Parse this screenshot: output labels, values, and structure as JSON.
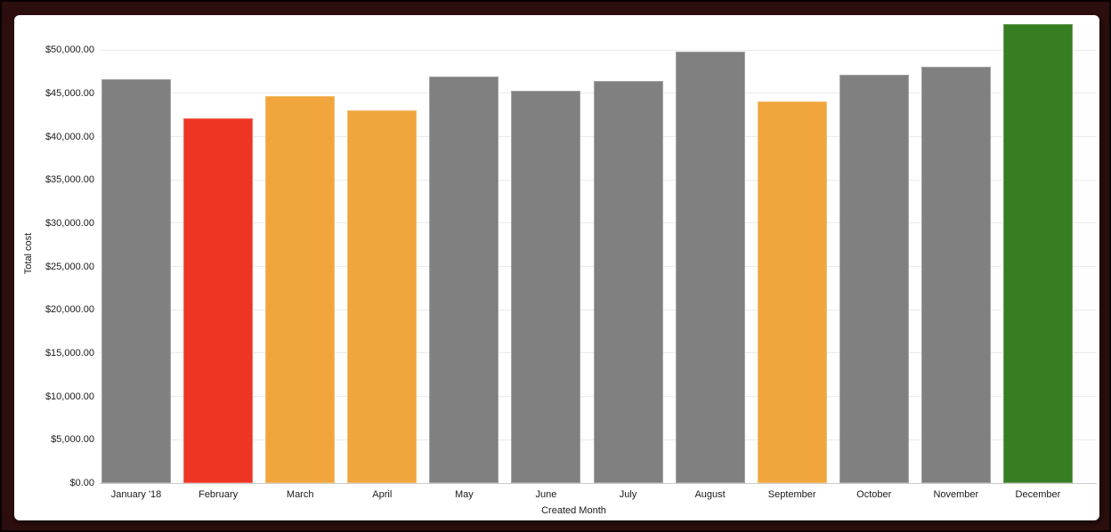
{
  "chart_data": {
    "type": "bar",
    "title": "",
    "xlabel": "Created Month",
    "ylabel": "Total cost",
    "categories": [
      "January '18",
      "February",
      "March",
      "April",
      "May",
      "June",
      "July",
      "August",
      "September",
      "October",
      "November",
      "December"
    ],
    "values": [
      46600,
      42100,
      44700,
      43000,
      46900,
      45300,
      46400,
      49800,
      44100,
      47100,
      48100,
      53000
    ],
    "bar_colors": [
      "#808080",
      "#ee3524",
      "#f0a63c",
      "#f0a63c",
      "#808080",
      "#808080",
      "#808080",
      "#808080",
      "#f0a63c",
      "#808080",
      "#808080",
      "#377d22"
    ],
    "y_ticks": [
      {
        "value": 0,
        "label": "$0.00"
      },
      {
        "value": 5000,
        "label": "$5,000.00"
      },
      {
        "value": 10000,
        "label": "$10,000.00"
      },
      {
        "value": 15000,
        "label": "$15,000.00"
      },
      {
        "value": 20000,
        "label": "$20,000.00"
      },
      {
        "value": 25000,
        "label": "$25,000.00"
      },
      {
        "value": 30000,
        "label": "$30,000.00"
      },
      {
        "value": 35000,
        "label": "$35,000.00"
      },
      {
        "value": 40000,
        "label": "$40,000.00"
      },
      {
        "value": 45000,
        "label": "$45,000.00"
      },
      {
        "value": 50000,
        "label": "$50,000.00"
      }
    ],
    "ylim": [
      0,
      53000
    ],
    "grid": true,
    "legend": "none",
    "colors": {
      "gray": "#808080",
      "red": "#ee3524",
      "orange": "#f0a63c",
      "green": "#377d22",
      "frame_background": "#2b0e0d",
      "card_background": "#ffffff",
      "gridline": "#ebebeb",
      "axis_line": "#cccccc",
      "text": "#1a1a1a"
    }
  }
}
